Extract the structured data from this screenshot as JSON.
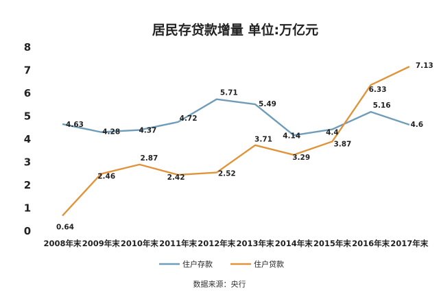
{
  "chart_data": {
    "type": "line",
    "title": "居民存贷款增量 单位:万亿元",
    "categories": [
      "2008年末",
      "2009年末",
      "2010年末",
      "2011年末",
      "2012年末",
      "2013年末",
      "2014年末",
      "2015年末",
      "2016年末",
      "2017年末"
    ],
    "series": [
      {
        "name": "住户存款",
        "color": "#6f9cb8",
        "values": [
          4.63,
          4.28,
          4.37,
          4.72,
          5.71,
          5.49,
          4.14,
          4.4,
          5.16,
          4.6
        ],
        "labels": [
          "4.63",
          "4.28",
          "4.37",
          "4.72",
          "5.71",
          "5.49",
          "4.14",
          "4.4",
          "5.16",
          "4.6"
        ]
      },
      {
        "name": "住户贷款",
        "color": "#e0943a",
        "values": [
          0.64,
          2.46,
          2.87,
          2.42,
          2.52,
          3.71,
          3.29,
          3.87,
          6.33,
          7.13
        ],
        "labels": [
          "0.64",
          "2.46",
          "2.87",
          "2.42",
          "2.52",
          "3.71",
          "3.29",
          "3.87",
          "6.33",
          "7.13"
        ]
      }
    ],
    "yticks": [
      "0",
      "1",
      "2",
      "3",
      "4",
      "5",
      "6",
      "7",
      "8"
    ],
    "ylim": [
      0,
      8
    ],
    "grid": false,
    "legend_position": "bottom",
    "source": "数据来源：央行"
  }
}
